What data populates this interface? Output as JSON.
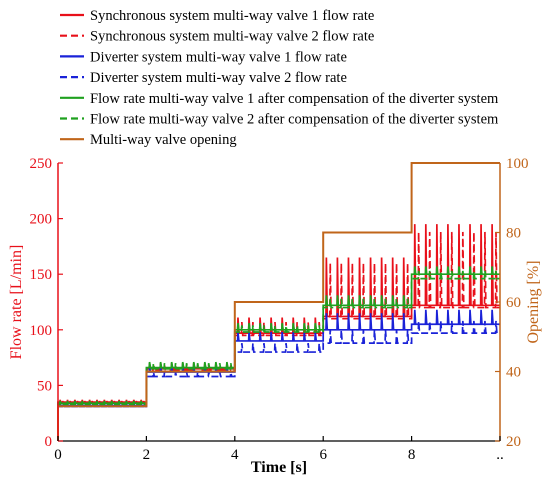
{
  "chart_data": {
    "type": "line",
    "title": "",
    "xlabel": "Time [s]",
    "ylabel_left": "Flow rate [L/min]",
    "ylabel_right": "Opening [%]",
    "xlim": [
      0,
      10
    ],
    "ylim_left": [
      0,
      250
    ],
    "ylim_right": [
      20,
      100
    ],
    "x_ticks": [
      "0",
      "2",
      "4",
      "6",
      "8",
      ".."
    ],
    "y_ticks_left": [
      "0",
      "50",
      "100",
      "150",
      "200",
      "250"
    ],
    "y_ticks_right": [
      "20",
      "40",
      "60",
      "80",
      "100"
    ],
    "grid": false,
    "legend_position": "top",
    "colors": {
      "left_axis": "#e8101a",
      "right_axis": "#c0651a"
    },
    "stage_times": [
      0,
      2,
      4,
      6,
      8,
      10
    ],
    "series": [
      {
        "name": "Synchronous system multi-way valve 1 flow rate",
        "color": "#e8101a",
        "dash": "solid",
        "axis": "left",
        "base": [
          35,
          65,
          97,
          112,
          122
        ],
        "peak": [
          37,
          70,
          111,
          165,
          195
        ]
      },
      {
        "name": "Synchronous system multi-way valve 2 flow rate",
        "color": "#e8101a",
        "dash": "dashed",
        "axis": "left",
        "base": [
          34,
          64,
          95,
          110,
          120
        ],
        "peak": [
          36,
          68,
          107,
          160,
          188
        ]
      },
      {
        "name": "Diverter system multi-way valve 1 flow rate",
        "color": "#1a22d8",
        "dash": "solid",
        "axis": "left",
        "base": [
          32,
          62,
          90,
          100,
          105
        ],
        "peak": [
          34,
          66,
          98,
          115,
          118
        ]
      },
      {
        "name": "Diverter system multi-way valve 2 flow rate",
        "color": "#1a22d8",
        "dash": "dashed",
        "axis": "left",
        "base": [
          31,
          58,
          80,
          88,
          97
        ],
        "peak": [
          33,
          62,
          88,
          100,
          108
        ]
      },
      {
        "name": "Flow rate multi-way valve 1 after compensation of the diverter system",
        "color": "#1fa11f",
        "dash": "solid",
        "axis": "left",
        "base": [
          34,
          66,
          100,
          122,
          150
        ],
        "peak": [
          36,
          71,
          106,
          131,
          157
        ]
      },
      {
        "name": "Flow rate multi-way valve 2 after compensation of the diverter system",
        "color": "#1fa11f",
        "dash": "dashed",
        "axis": "left",
        "base": [
          33,
          65,
          98,
          120,
          146
        ],
        "peak": [
          35,
          70,
          104,
          128,
          153
        ]
      },
      {
        "name": "Multi-way valve opening",
        "color": "#c0651a",
        "dash": "solid",
        "axis": "right",
        "values": [
          30,
          40,
          60,
          80,
          100
        ]
      }
    ]
  }
}
